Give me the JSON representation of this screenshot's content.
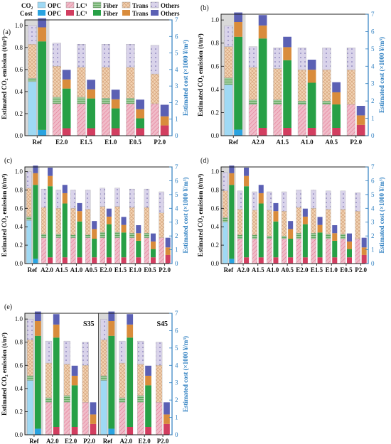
{
  "legend": {
    "co2_label": "CO₂",
    "cost_label": "Cost",
    "entries": [
      {
        "name": "OPC",
        "key": "opc"
      },
      {
        "name": "LC³",
        "key": "lc3"
      },
      {
        "name": "Fiber",
        "key": "fiber"
      },
      {
        "name": "Trans",
        "key": "trans"
      },
      {
        "name": "Others",
        "key": "others"
      }
    ]
  },
  "colors": {
    "opc_co2": "#9fd9f4",
    "opc_cost": "#29a3e0",
    "lc3_co2": "#f0bcc9",
    "lc3_cost": "#d23e60",
    "fiber_co2": "#9fcc9c",
    "fiber_cost": "#27a046",
    "trans_co2": "#f2d3b3",
    "trans_cost": "#d98c3c",
    "others_co2": "#d9d3ea",
    "others_cost": "#5b60b4",
    "axis_right": "#2e7fc1",
    "ref_shade": "#d9d9d9"
  },
  "chart_data": [
    {
      "type": "bar",
      "stacked": true,
      "panel": "(a)",
      "categories": [
        "Ref",
        "E2.0",
        "E1.5",
        "E1.0",
        "E0.5",
        "P2.0"
      ],
      "ylabel": "Estimated CO₂ emission (t/m³)",
      "ylim": [
        0,
        1.05
      ],
      "y2label": "Estimated cost (×1000 ¥/m³)",
      "y2lim": [
        0,
        7
      ],
      "co2": {
        "opc": [
          0.49,
          0,
          0,
          0,
          0,
          0
        ],
        "lc3": [
          0,
          0.29,
          0.29,
          0.29,
          0.29,
          0.29
        ],
        "fiber": [
          0.03,
          0.06,
          0.06,
          0.05,
          0.05,
          0.0
        ],
        "trans": [
          0.31,
          0.28,
          0.27,
          0.28,
          0.28,
          0.27
        ],
        "others": [
          0.17,
          0.21,
          0.21,
          0.21,
          0.21,
          0.26
        ]
      },
      "cost": {
        "opc": [
          0.35,
          0,
          0,
          0,
          0,
          0
        ],
        "lc3": [
          0,
          0.45,
          0.45,
          0.45,
          0.45,
          0.62
        ],
        "fiber": [
          5.35,
          2.4,
          1.8,
          1.2,
          0.6,
          0.0
        ],
        "trans": [
          0.85,
          0.55,
          0.55,
          0.55,
          0.55,
          0.55
        ],
        "others": [
          0.55,
          0.58,
          0.58,
          0.58,
          0.58,
          0.7
        ]
      }
    },
    {
      "type": "bar",
      "stacked": true,
      "panel": "(b)",
      "categories": [
        "Ref",
        "A2.0",
        "A1.5",
        "A1.0",
        "A0.5",
        "P2.0"
      ],
      "ylabel": "Estimated CO₂ emission (t/m³)",
      "ylim": [
        0,
        1.05
      ],
      "y2label": "Estimated cost (×1000 ¥/m³)",
      "y2lim": [
        0,
        7
      ],
      "co2": {
        "opc": [
          0.44,
          0,
          0,
          0,
          0,
          0
        ],
        "lc3": [
          0,
          0.27,
          0.27,
          0.27,
          0.27,
          0.27
        ],
        "fiber": [
          0.06,
          0.04,
          0.04,
          0.03,
          0.03,
          0.0
        ],
        "trans": [
          0.27,
          0.28,
          0.27,
          0.27,
          0.27,
          0.3
        ],
        "others": [
          0.18,
          0.18,
          0.18,
          0.19,
          0.19,
          0.19
        ]
      },
      "cost": {
        "opc": [
          0.35,
          0,
          0,
          0,
          0,
          0
        ],
        "lc3": [
          0,
          0.45,
          0.45,
          0.45,
          0.45,
          0.62
        ],
        "fiber": [
          5.35,
          5.15,
          3.9,
          2.6,
          1.35,
          0.0
        ],
        "trans": [
          0.85,
          0.75,
          0.75,
          0.75,
          0.7,
          0.55
        ],
        "others": [
          0.55,
          0.6,
          0.6,
          0.58,
          0.58,
          0.55
        ]
      }
    },
    {
      "type": "bar",
      "stacked": true,
      "panel": "(c)",
      "categories": [
        "Ref",
        "A2.0",
        "A1.5",
        "A1.0",
        "A0.5",
        "E2.0",
        "E1.5",
        "E1.0",
        "E0.5",
        "P2.0"
      ],
      "ylabel": "Estimated CO₂ emission (t/m³)",
      "ylim": [
        0,
        1.05
      ],
      "y2label": "Estimated cost (×1000 ¥/m³)",
      "y2lim": [
        0,
        7
      ],
      "co2": {
        "opc": [
          0.47,
          0,
          0,
          0,
          0,
          0,
          0,
          0,
          0,
          0
        ],
        "lc3": [
          0,
          0.28,
          0.28,
          0.28,
          0.28,
          0.28,
          0.28,
          0.28,
          0.28,
          0.28
        ],
        "fiber": [
          0.04,
          0.04,
          0.04,
          0.03,
          0.03,
          0.06,
          0.06,
          0.05,
          0.05,
          0.0
        ],
        "trans": [
          0.31,
          0.29,
          0.28,
          0.29,
          0.28,
          0.28,
          0.28,
          0.28,
          0.28,
          0.27
        ],
        "others": [
          0.18,
          0.2,
          0.2,
          0.2,
          0.21,
          0.2,
          0.2,
          0.2,
          0.2,
          0.23
        ]
      },
      "cost": {
        "opc": [
          0.35,
          0,
          0,
          0,
          0,
          0,
          0,
          0,
          0,
          0
        ],
        "lc3": [
          0,
          0.45,
          0.45,
          0.45,
          0.45,
          0.45,
          0.45,
          0.45,
          0.45,
          0.62
        ],
        "fiber": [
          5.35,
          5.15,
          3.9,
          2.6,
          1.35,
          2.4,
          1.8,
          1.2,
          0.6,
          0.0
        ],
        "trans": [
          0.85,
          0.75,
          0.75,
          0.75,
          0.7,
          0.55,
          0.55,
          0.55,
          0.55,
          0.55
        ],
        "others": [
          0.55,
          0.6,
          0.6,
          0.58,
          0.58,
          0.58,
          0.58,
          0.58,
          0.58,
          0.7
        ]
      }
    },
    {
      "type": "bar",
      "stacked": true,
      "panel": "(d)",
      "categories": [
        "Ref",
        "A2.0",
        "A1.5",
        "A1.0",
        "A0.5",
        "E2.0",
        "E1.5",
        "E1.0",
        "E0.5",
        "P2.0"
      ],
      "ylabel": "Estimated CO₂ emission (t/m³)",
      "ylim": [
        0,
        1.05
      ],
      "y2label": "Estimated cost (×1000 ¥/m³)",
      "y2lim": [
        0,
        7
      ],
      "co2": {
        "opc": [
          0.45,
          0,
          0,
          0,
          0,
          0,
          0,
          0,
          0,
          0
        ],
        "lc3": [
          0,
          0.27,
          0.27,
          0.27,
          0.27,
          0.27,
          0.27,
          0.27,
          0.27,
          0.27
        ],
        "fiber": [
          0.05,
          0.04,
          0.04,
          0.03,
          0.03,
          0.06,
          0.06,
          0.05,
          0.05,
          0.0
        ],
        "trans": [
          0.29,
          0.28,
          0.27,
          0.28,
          0.27,
          0.28,
          0.27,
          0.27,
          0.27,
          0.3
        ],
        "others": [
          0.2,
          0.2,
          0.2,
          0.2,
          0.21,
          0.19,
          0.2,
          0.2,
          0.2,
          0.2
        ]
      },
      "cost": {
        "opc": [
          0.35,
          0,
          0,
          0,
          0,
          0,
          0,
          0,
          0,
          0
        ],
        "lc3": [
          0,
          0.45,
          0.45,
          0.45,
          0.45,
          0.45,
          0.45,
          0.45,
          0.45,
          0.62
        ],
        "fiber": [
          5.35,
          5.15,
          3.9,
          2.6,
          1.35,
          2.4,
          1.8,
          1.2,
          0.6,
          0.0
        ],
        "trans": [
          0.85,
          0.75,
          0.75,
          0.75,
          0.7,
          0.55,
          0.55,
          0.55,
          0.55,
          0.55
        ],
        "others": [
          0.55,
          0.6,
          0.6,
          0.58,
          0.58,
          0.58,
          0.58,
          0.58,
          0.58,
          0.7
        ]
      }
    },
    {
      "type": "bar",
      "stacked": true,
      "panel": "(e)",
      "groups": [
        "S35",
        "S45"
      ],
      "categories": [
        "Ref",
        "A2.0",
        "E2.0",
        "P2.0",
        "Ref",
        "A2.0",
        "E2.0",
        "P2.0"
      ],
      "ylabel": "Estimated CO₂ emission (t/m³)",
      "ylim": [
        0,
        1.05
      ],
      "y2label": "Estimated cost (×1000 ¥/m³)",
      "y2lim": [
        0,
        7
      ],
      "co2": {
        "opc": [
          0.47,
          0,
          0,
          0,
          0.47,
          0,
          0,
          0
        ],
        "lc3": [
          0,
          0.28,
          0.28,
          0.28,
          0,
          0.28,
          0.28,
          0.28
        ],
        "fiber": [
          0.04,
          0.04,
          0.06,
          0.0,
          0.04,
          0.04,
          0.06,
          0.0
        ],
        "trans": [
          0.31,
          0.3,
          0.27,
          0.32,
          0.31,
          0.3,
          0.27,
          0.32
        ],
        "others": [
          0.18,
          0.19,
          0.2,
          0.2,
          0.18,
          0.19,
          0.2,
          0.2
        ]
      },
      "cost": {
        "opc": [
          0.35,
          0,
          0,
          0,
          0.35,
          0,
          0,
          0
        ],
        "lc3": [
          0,
          0.45,
          0.45,
          0.62,
          0,
          0.45,
          0.45,
          0.62
        ],
        "fiber": [
          5.35,
          5.15,
          2.4,
          0.0,
          5.35,
          5.15,
          2.4,
          0.0
        ],
        "trans": [
          0.85,
          0.75,
          0.55,
          0.55,
          0.85,
          0.75,
          0.55,
          0.55
        ],
        "others": [
          0.55,
          0.6,
          0.58,
          0.7,
          0.55,
          0.6,
          0.58,
          0.7
        ]
      }
    }
  ]
}
